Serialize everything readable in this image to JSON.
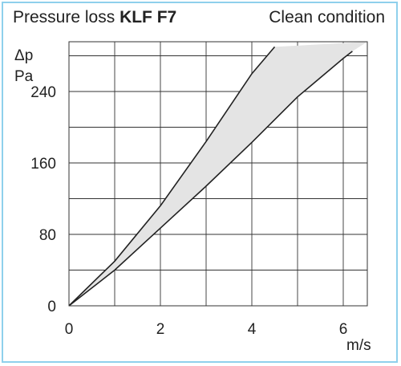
{
  "chart_data": {
    "type": "area",
    "title_prefix": "Pressure loss",
    "title_bold": "KLF F7",
    "subtitle": "Clean condition",
    "ylabel_symbol": "Δp",
    "ylabel_unit": "Pa",
    "xlabel": "m/s",
    "xlim": [
      0,
      6.5
    ],
    "ylim": [
      0,
      290
    ],
    "x_ticks": [
      "0",
      "2",
      "4",
      "6"
    ],
    "y_ticks": [
      "0",
      "80",
      "160",
      "240"
    ],
    "grid": true,
    "series": [
      {
        "x": [
          0,
          1,
          2,
          3,
          4,
          4.5
        ],
        "y": [
          0,
          50,
          112,
          184,
          260,
          290
        ]
      },
      {
        "x": [
          0,
          1,
          2,
          3,
          4,
          5,
          6,
          6.2
        ],
        "y": [
          0,
          40,
          87,
          134,
          183,
          234,
          277,
          285
        ]
      }
    ],
    "band_color": "#e4e4e4",
    "line_color": "#222222",
    "frame_color": "#8fd0ec"
  }
}
